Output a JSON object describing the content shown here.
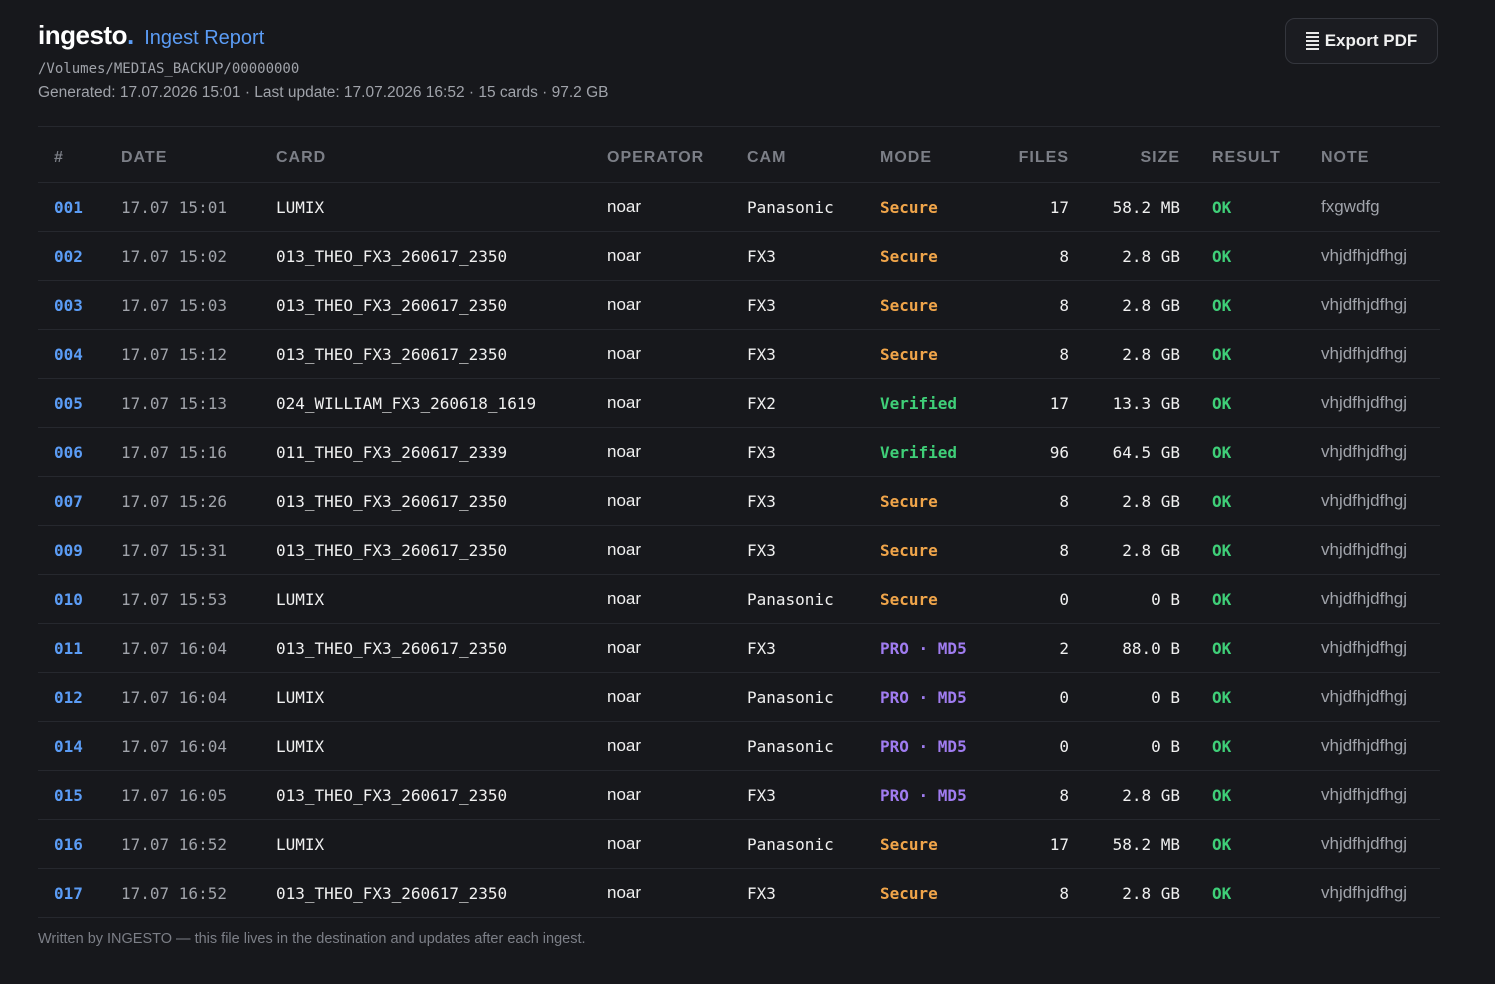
{
  "header": {
    "brand": "ingesto",
    "brand_dot": ".",
    "title": "Ingest Report",
    "path": "/Volumes/MEDIAS_BACKUP/00000000",
    "meta": "Generated: 17.07.2026 15:01 · Last update: 17.07.2026 16:52 · 15 cards · 97.2 GB",
    "export_label": "Export PDF",
    "export_icon": "document-icon"
  },
  "colors": {
    "background": "#17181c",
    "accent_blue": "#5b9cf5",
    "secure": "#f0a54a",
    "verified": "#3fcf78",
    "pro_md5": "#a07cf0",
    "ok": "#3fcf78"
  },
  "table": {
    "columns": [
      "#",
      "DATE",
      "CARD",
      "OPERATOR",
      "CAM",
      "MODE",
      "FILES",
      "SIZE",
      "RESULT",
      "NOTE"
    ],
    "rows": [
      {
        "num": "001",
        "date": "17.07 15:01",
        "card": "LUMIX",
        "operator": "noar",
        "cam": "Panasonic",
        "mode": "Secure",
        "mode_type": "secure",
        "files": "17",
        "size": "58.2 MB",
        "result": "OK",
        "note": "fxgwdfg"
      },
      {
        "num": "002",
        "date": "17.07 15:02",
        "card": "013_THEO_FX3_260617_2350",
        "operator": "noar",
        "cam": "FX3",
        "mode": "Secure",
        "mode_type": "secure",
        "files": "8",
        "size": "2.8 GB",
        "result": "OK",
        "note": "vhjdfhjdfhgj"
      },
      {
        "num": "003",
        "date": "17.07 15:03",
        "card": "013_THEO_FX3_260617_2350",
        "operator": "noar",
        "cam": "FX3",
        "mode": "Secure",
        "mode_type": "secure",
        "files": "8",
        "size": "2.8 GB",
        "result": "OK",
        "note": "vhjdfhjdfhgj"
      },
      {
        "num": "004",
        "date": "17.07 15:12",
        "card": "013_THEO_FX3_260617_2350",
        "operator": "noar",
        "cam": "FX3",
        "mode": "Secure",
        "mode_type": "secure",
        "files": "8",
        "size": "2.8 GB",
        "result": "OK",
        "note": "vhjdfhjdfhgj"
      },
      {
        "num": "005",
        "date": "17.07 15:13",
        "card": "024_WILLIAM_FX3_260618_1619",
        "operator": "noar",
        "cam": "FX2",
        "mode": "Verified",
        "mode_type": "verified",
        "files": "17",
        "size": "13.3 GB",
        "result": "OK",
        "note": "vhjdfhjdfhgj"
      },
      {
        "num": "006",
        "date": "17.07 15:16",
        "card": "011_THEO_FX3_260617_2339",
        "operator": "noar",
        "cam": "FX3",
        "mode": "Verified",
        "mode_type": "verified",
        "files": "96",
        "size": "64.5 GB",
        "result": "OK",
        "note": "vhjdfhjdfhgj"
      },
      {
        "num": "007",
        "date": "17.07 15:26",
        "card": "013_THEO_FX3_260617_2350",
        "operator": "noar",
        "cam": "FX3",
        "mode": "Secure",
        "mode_type": "secure",
        "files": "8",
        "size": "2.8 GB",
        "result": "OK",
        "note": "vhjdfhjdfhgj"
      },
      {
        "num": "009",
        "date": "17.07 15:31",
        "card": "013_THEO_FX3_260617_2350",
        "operator": "noar",
        "cam": "FX3",
        "mode": "Secure",
        "mode_type": "secure",
        "files": "8",
        "size": "2.8 GB",
        "result": "OK",
        "note": "vhjdfhjdfhgj"
      },
      {
        "num": "010",
        "date": "17.07 15:53",
        "card": "LUMIX",
        "operator": "noar",
        "cam": "Panasonic",
        "mode": "Secure",
        "mode_type": "secure",
        "files": "0",
        "size": "0 B",
        "result": "OK",
        "note": "vhjdfhjdfhgj"
      },
      {
        "num": "011",
        "date": "17.07 16:04",
        "card": "013_THEO_FX3_260617_2350",
        "operator": "noar",
        "cam": "FX3",
        "mode": "PRO · MD5",
        "mode_type": "pro",
        "files": "2",
        "size": "88.0 B",
        "result": "OK",
        "note": "vhjdfhjdfhgj"
      },
      {
        "num": "012",
        "date": "17.07 16:04",
        "card": "LUMIX",
        "operator": "noar",
        "cam": "Panasonic",
        "mode": "PRO · MD5",
        "mode_type": "pro",
        "files": "0",
        "size": "0 B",
        "result": "OK",
        "note": "vhjdfhjdfhgj"
      },
      {
        "num": "014",
        "date": "17.07 16:04",
        "card": "LUMIX",
        "operator": "noar",
        "cam": "Panasonic",
        "mode": "PRO · MD5",
        "mode_type": "pro",
        "files": "0",
        "size": "0 B",
        "result": "OK",
        "note": "vhjdfhjdfhgj"
      },
      {
        "num": "015",
        "date": "17.07 16:05",
        "card": "013_THEO_FX3_260617_2350",
        "operator": "noar",
        "cam": "FX3",
        "mode": "PRO · MD5",
        "mode_type": "pro",
        "files": "8",
        "size": "2.8 GB",
        "result": "OK",
        "note": "vhjdfhjdfhgj"
      },
      {
        "num": "016",
        "date": "17.07 16:52",
        "card": "LUMIX",
        "operator": "noar",
        "cam": "Panasonic",
        "mode": "Secure",
        "mode_type": "secure",
        "files": "17",
        "size": "58.2 MB",
        "result": "OK",
        "note": "vhjdfhjdfhgj"
      },
      {
        "num": "017",
        "date": "17.07 16:52",
        "card": "013_THEO_FX3_260617_2350",
        "operator": "noar",
        "cam": "FX3",
        "mode": "Secure",
        "mode_type": "secure",
        "files": "8",
        "size": "2.8 GB",
        "result": "OK",
        "note": "vhjdfhjdfhgj"
      }
    ]
  },
  "footer": {
    "text": "Written by INGESTO — this file lives in the destination and updates after each ingest."
  }
}
